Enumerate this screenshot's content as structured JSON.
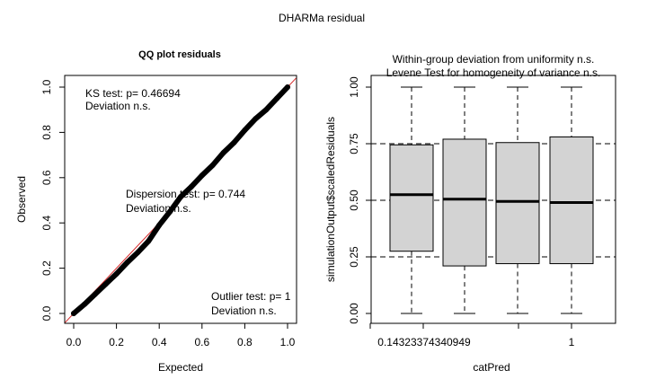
{
  "window": {
    "title": "DHARMa residual"
  },
  "chart_data": [
    {
      "type": "scatter",
      "title": "QQ plot residuals",
      "xlabel": "Expected",
      "ylabel": "Observed",
      "xlim": [
        0,
        1
      ],
      "ylim": [
        0,
        1
      ],
      "x_ticks": [
        "0.0",
        "0.2",
        "0.4",
        "0.6",
        "0.8",
        "1.0"
      ],
      "y_ticks": [
        "0.0",
        "0.2",
        "0.4",
        "0.6",
        "0.8",
        "1.0"
      ],
      "reference_line": {
        "from": [
          0,
          0
        ],
        "to": [
          1,
          1
        ],
        "color": "#d62728"
      },
      "series": [
        {
          "x": [
            0.0,
            0.05,
            0.1,
            0.15,
            0.2,
            0.25,
            0.3,
            0.35,
            0.4,
            0.45,
            0.5,
            0.55,
            0.6,
            0.65,
            0.7,
            0.75,
            0.8,
            0.85,
            0.9,
            0.95,
            1.0
          ],
          "y": [
            0.0,
            0.04,
            0.085,
            0.13,
            0.175,
            0.225,
            0.27,
            0.32,
            0.39,
            0.45,
            0.515,
            0.56,
            0.61,
            0.655,
            0.71,
            0.755,
            0.81,
            0.86,
            0.9,
            0.95,
            1.0
          ],
          "color": "#000000"
        }
      ],
      "annotations": [
        {
          "lines": [
            "KS test: p= 0.46694",
            "Deviation  n.s."
          ]
        },
        {
          "lines": [
            "Dispersion test: p= 0.744",
            "Deviation  n.s."
          ]
        },
        {
          "lines": [
            "Outlier test: p= 1",
            "Deviation  n.s."
          ]
        }
      ]
    },
    {
      "type": "box",
      "title": "Within-group deviation from uniformity n.s.",
      "subtitle": "Levene Test for homogeneity of variance n.s.",
      "xlabel": "catPred",
      "ylabel": "simulationOutput$scaledResiduals",
      "ylim": [
        0,
        1
      ],
      "y_ticks": [
        "0.00",
        "0.25",
        "0.50",
        "0.75",
        "1.00"
      ],
      "x_tick_labels": [
        "0.14323374340949",
        "",
        "",
        "1"
      ],
      "reference_lines": [
        0.25,
        0.5,
        0.75
      ],
      "fill": "#d3d3d3",
      "boxes": [
        {
          "min": 0.0,
          "q1": 0.275,
          "median": 0.525,
          "q3": 0.745,
          "max": 1.0
        },
        {
          "min": 0.0,
          "q1": 0.21,
          "median": 0.505,
          "q3": 0.77,
          "max": 1.0
        },
        {
          "min": 0.0,
          "q1": 0.22,
          "median": 0.495,
          "q3": 0.755,
          "max": 1.0
        },
        {
          "min": 0.0,
          "q1": 0.22,
          "median": 0.49,
          "q3": 0.78,
          "max": 1.0
        }
      ]
    }
  ]
}
